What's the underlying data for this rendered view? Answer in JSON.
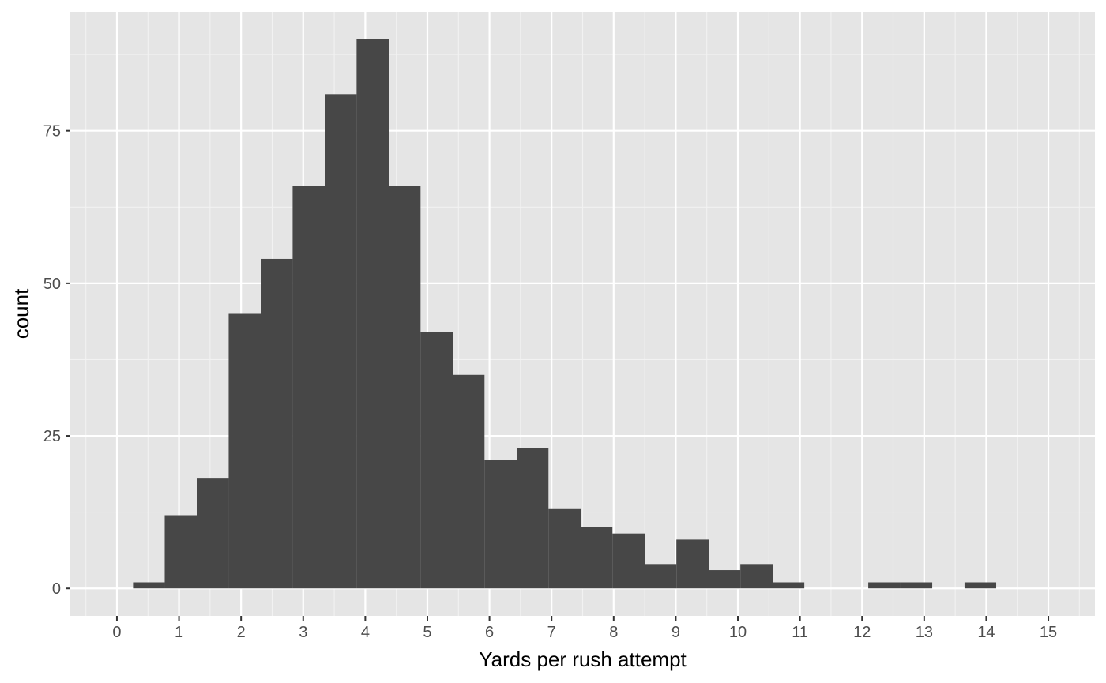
{
  "chart_data": {
    "type": "bar",
    "subtype": "histogram",
    "title": "",
    "xlabel": "Yards per rush attempt",
    "ylabel": "count",
    "xlim": [
      -0.75,
      15.75
    ],
    "ylim": [
      -4.5,
      94.5
    ],
    "x_ticks": [
      "0",
      "1",
      "2",
      "3",
      "4",
      "5",
      "6",
      "7",
      "8",
      "9",
      "10",
      "11",
      "12",
      "13",
      "14",
      "15"
    ],
    "y_ticks": [
      "0",
      "25",
      "50",
      "75"
    ],
    "grid": true,
    "legend": "none",
    "bins": [
      {
        "x0": 0.26,
        "x1": 0.77,
        "count": 1
      },
      {
        "x0": 0.77,
        "x1": 1.29,
        "count": 12
      },
      {
        "x0": 1.29,
        "x1": 1.8,
        "count": 18
      },
      {
        "x0": 1.8,
        "x1": 2.32,
        "count": 45
      },
      {
        "x0": 2.32,
        "x1": 2.83,
        "count": 54
      },
      {
        "x0": 2.83,
        "x1": 3.35,
        "count": 66
      },
      {
        "x0": 3.35,
        "x1": 3.86,
        "count": 81
      },
      {
        "x0": 3.86,
        "x1": 4.38,
        "count": 90
      },
      {
        "x0": 4.38,
        "x1": 4.89,
        "count": 66
      },
      {
        "x0": 4.89,
        "x1": 5.41,
        "count": 42
      },
      {
        "x0": 5.41,
        "x1": 5.92,
        "count": 35
      },
      {
        "x0": 5.92,
        "x1": 6.44,
        "count": 21
      },
      {
        "x0": 6.44,
        "x1": 6.95,
        "count": 23
      },
      {
        "x0": 6.95,
        "x1": 7.47,
        "count": 13
      },
      {
        "x0": 7.47,
        "x1": 7.98,
        "count": 10
      },
      {
        "x0": 7.98,
        "x1": 8.5,
        "count": 9
      },
      {
        "x0": 8.5,
        "x1": 9.01,
        "count": 4
      },
      {
        "x0": 9.01,
        "x1": 9.53,
        "count": 8
      },
      {
        "x0": 9.53,
        "x1": 10.04,
        "count": 3
      },
      {
        "x0": 10.04,
        "x1": 10.56,
        "count": 4
      },
      {
        "x0": 10.56,
        "x1": 11.07,
        "count": 1
      },
      {
        "x0": 11.07,
        "x1": 11.59,
        "count": 0
      },
      {
        "x0": 11.59,
        "x1": 12.1,
        "count": 0
      },
      {
        "x0": 12.1,
        "x1": 12.62,
        "count": 1
      },
      {
        "x0": 12.62,
        "x1": 13.13,
        "count": 1
      },
      {
        "x0": 13.13,
        "x1": 13.65,
        "count": 0
      },
      {
        "x0": 13.65,
        "x1": 14.16,
        "count": 1
      }
    ],
    "colors": {
      "panel_background": "#e5e5e5",
      "grid_major": "#ffffff",
      "grid_minor": "#f2f2f2",
      "bar_fill": "#474747",
      "tick_text": "#4d4d4d",
      "tick_mark": "#333333",
      "title_text": "#000000"
    }
  }
}
